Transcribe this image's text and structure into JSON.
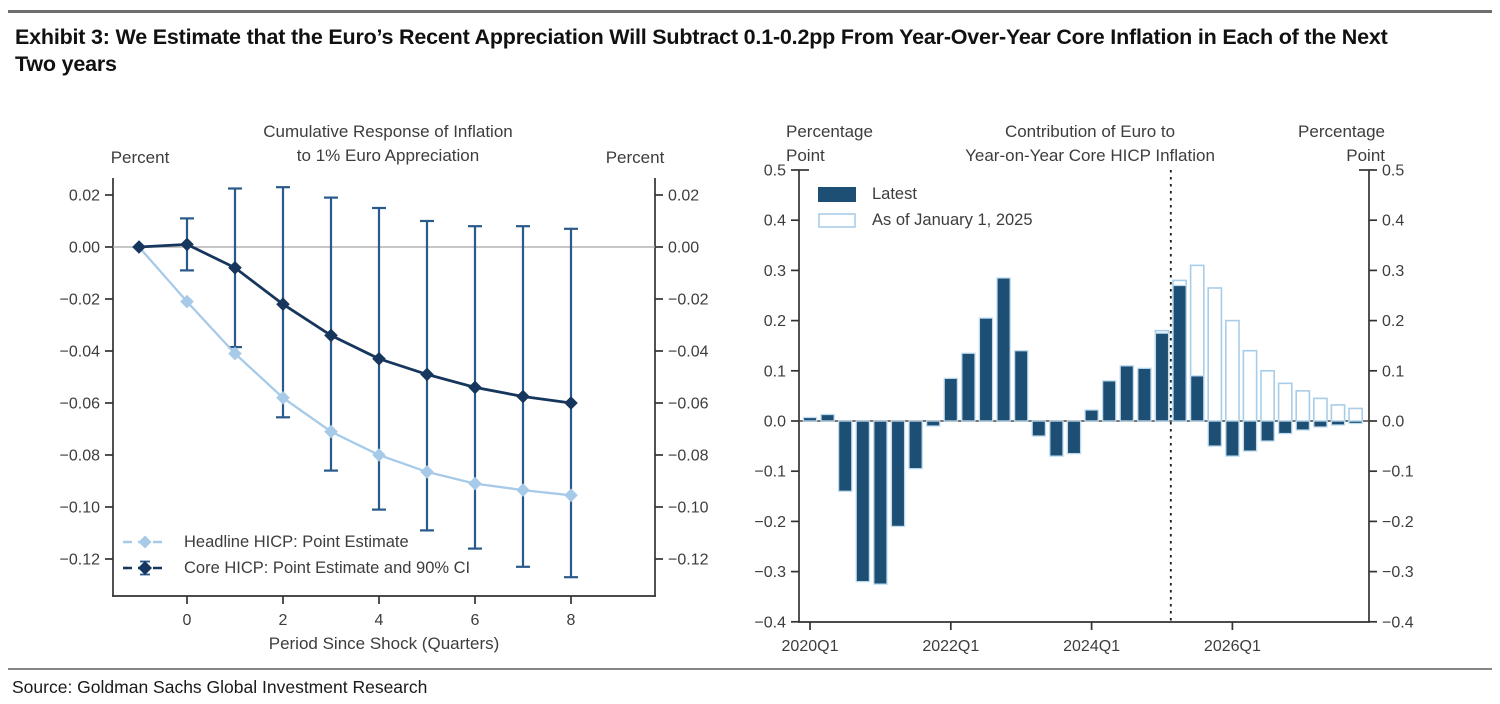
{
  "header": {
    "title_line1": "Exhibit 3: We Estimate that the Euro’s Recent Appreciation Will Subtract 0.1-0.2pp From Year-Over-Year Core Inflation in Each of the Next",
    "title_line2": "Two years"
  },
  "source": "Source: Goldman Sachs Global Investment Research",
  "colors": {
    "dark_navy": "#17365D",
    "ci_navy": "#2A5A8C",
    "light_blue": "#A6CAE8",
    "bar_fill": "#1D4E74",
    "bar_outline": "#BFDCEF",
    "asof_outline": "#A8CDE9",
    "axis": "#333333",
    "zero_gray": "#B3B3B3"
  },
  "chart_data": [
    {
      "type": "line",
      "title_lines": [
        "Cumulative Response of Inflation",
        "to 1% Euro Appreciation"
      ],
      "left_axis_label": "Percent",
      "right_axis_label": "Percent",
      "xlabel": "Period Since Shock (Quarters)",
      "x": [
        -1,
        0,
        1,
        2,
        3,
        4,
        5,
        6,
        7,
        8
      ],
      "xticks": [
        0,
        2,
        4,
        6,
        8
      ],
      "yticks": [
        0.02,
        0.0,
        -0.02,
        -0.04,
        -0.06,
        -0.08,
        -0.1,
        -0.12
      ],
      "ylim": [
        -0.135,
        0.027
      ],
      "grid": false,
      "zero_line": true,
      "legend_position": "bottom-left",
      "series": [
        {
          "name": "Headline HICP: Point Estimate",
          "color": "#A6CAE8",
          "values": [
            0.0,
            -0.021,
            -0.041,
            -0.058,
            -0.071,
            -0.08,
            -0.0865,
            -0.091,
            -0.0935,
            -0.0955
          ]
        },
        {
          "name": "Core HICP: Point Estimate and 90% CI",
          "color": "#17365D",
          "values": [
            0.0,
            0.001,
            -0.008,
            -0.022,
            -0.034,
            -0.043,
            -0.049,
            -0.054,
            -0.0575,
            -0.06
          ],
          "ci_x": [
            0,
            1,
            2,
            3,
            4,
            5,
            6,
            7,
            8
          ],
          "ci_low": [
            -0.009,
            -0.0385,
            -0.0655,
            -0.086,
            -0.101,
            -0.109,
            -0.116,
            -0.123,
            -0.127
          ],
          "ci_high": [
            0.011,
            0.0225,
            0.023,
            0.019,
            0.015,
            0.01,
            0.008,
            0.008,
            0.007
          ],
          "ci_color": "#2A5A8C"
        }
      ]
    },
    {
      "type": "bar",
      "title_lines": [
        "Contribution of Euro to",
        "Year-on-Year Core HICP Inflation"
      ],
      "left_axis_label_lines": [
        "Percentage",
        "Point"
      ],
      "right_axis_label_lines": [
        "Percentage",
        "Point"
      ],
      "categories": [
        "2020Q1",
        "2020Q2",
        "2020Q3",
        "2020Q4",
        "2021Q1",
        "2021Q2",
        "2021Q3",
        "2021Q4",
        "2022Q1",
        "2022Q2",
        "2022Q3",
        "2022Q4",
        "2023Q1",
        "2023Q2",
        "2023Q3",
        "2023Q4",
        "2024Q1",
        "2024Q2",
        "2024Q3",
        "2024Q4",
        "2025Q1",
        "2025Q2",
        "2025Q3",
        "2025Q4",
        "2026Q1",
        "2026Q2",
        "2026Q3",
        "2026Q4",
        "2027Q1",
        "2027Q2",
        "2027Q3",
        "2027Q4"
      ],
      "xtick_labels": [
        "2020Q1",
        "2022Q1",
        "2024Q1",
        "2026Q1"
      ],
      "xtick_indices": [
        0,
        8,
        16,
        24
      ],
      "yticks": [
        0.5,
        0.4,
        0.3,
        0.2,
        0.1,
        0.0,
        -0.1,
        -0.2,
        -0.3,
        -0.4
      ],
      "ylim": [
        -0.4,
        0.5
      ],
      "grid": false,
      "legend_position": "top-left",
      "divider_index": 20.5,
      "series": [
        {
          "name": "Latest",
          "style": "filled",
          "fill": "#1D4E74",
          "stroke": "#BFDCEF",
          "values": [
            0.007,
            0.013,
            -0.14,
            -0.32,
            -0.325,
            -0.21,
            -0.095,
            -0.01,
            0.085,
            0.135,
            0.205,
            0.285,
            0.14,
            -0.03,
            -0.07,
            -0.065,
            0.022,
            0.08,
            0.11,
            0.105,
            0.175,
            0.27,
            0.09,
            -0.05,
            -0.07,
            -0.06,
            -0.04,
            -0.025,
            -0.018,
            -0.012,
            -0.008,
            -0.005
          ]
        },
        {
          "name": "As of January 1, 2025",
          "style": "outline",
          "fill": "#FFFFFF",
          "stroke": "#A8CDE9",
          "values": [
            null,
            null,
            null,
            null,
            null,
            null,
            null,
            null,
            null,
            null,
            null,
            null,
            null,
            null,
            null,
            null,
            null,
            null,
            null,
            null,
            0.18,
            0.28,
            0.31,
            0.265,
            0.2,
            0.14,
            0.1,
            0.075,
            0.06,
            0.045,
            0.032,
            0.025
          ]
        }
      ]
    }
  ]
}
